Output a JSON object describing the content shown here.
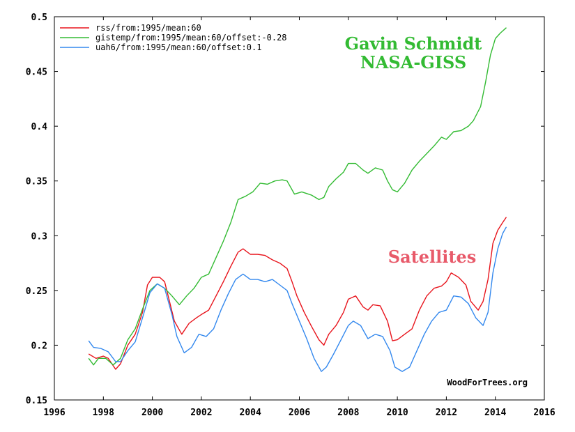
{
  "chart_data": {
    "type": "line",
    "title": "",
    "xlabel": "",
    "ylabel": "",
    "xlim": [
      1996,
      2016
    ],
    "ylim": [
      0.15,
      0.5
    ],
    "x_ticks": [
      1996,
      1998,
      2000,
      2002,
      2004,
      2006,
      2008,
      2010,
      2012,
      2014,
      2016
    ],
    "y_ticks": [
      0.15,
      0.2,
      0.25,
      0.3,
      0.35,
      0.4,
      0.45,
      0.5
    ],
    "x_tick_labels": [
      "1996",
      "1998",
      "2000",
      "2002",
      "2004",
      "2006",
      "2008",
      "2010",
      "2012",
      "2014",
      "2016"
    ],
    "y_tick_labels": [
      "0.15",
      "0.2",
      "0.25",
      "0.3",
      "0.35",
      "0.4",
      "0.45",
      "0.5"
    ],
    "grid": false,
    "legend_position": "top-left",
    "series": [
      {
        "name": "rss/from:1995/mean:60",
        "color": "#e8141c",
        "points": [
          [
            1997.4,
            0.192
          ],
          [
            1997.7,
            0.188
          ],
          [
            1998.0,
            0.19
          ],
          [
            1998.2,
            0.188
          ],
          [
            1998.5,
            0.178
          ],
          [
            1998.7,
            0.183
          ],
          [
            1999.0,
            0.2
          ],
          [
            1999.3,
            0.21
          ],
          [
            1999.6,
            0.23
          ],
          [
            1999.8,
            0.255
          ],
          [
            2000.0,
            0.262
          ],
          [
            2000.3,
            0.262
          ],
          [
            2000.5,
            0.258
          ],
          [
            2000.7,
            0.24
          ],
          [
            2000.9,
            0.222
          ],
          [
            2001.2,
            0.21
          ],
          [
            2001.5,
            0.22
          ],
          [
            2001.8,
            0.225
          ],
          [
            2002.0,
            0.228
          ],
          [
            2002.3,
            0.232
          ],
          [
            2002.6,
            0.245
          ],
          [
            2002.9,
            0.258
          ],
          [
            2003.2,
            0.272
          ],
          [
            2003.5,
            0.285
          ],
          [
            2003.7,
            0.288
          ],
          [
            2004.0,
            0.283
          ],
          [
            2004.3,
            0.283
          ],
          [
            2004.6,
            0.282
          ],
          [
            2004.9,
            0.278
          ],
          [
            2005.2,
            0.275
          ],
          [
            2005.5,
            0.27
          ],
          [
            2005.7,
            0.258
          ],
          [
            2005.9,
            0.245
          ],
          [
            2006.2,
            0.23
          ],
          [
            2006.5,
            0.217
          ],
          [
            2006.8,
            0.205
          ],
          [
            2007.0,
            0.2
          ],
          [
            2007.2,
            0.21
          ],
          [
            2007.5,
            0.218
          ],
          [
            2007.8,
            0.23
          ],
          [
            2008.0,
            0.242
          ],
          [
            2008.3,
            0.245
          ],
          [
            2008.6,
            0.235
          ],
          [
            2008.8,
            0.232
          ],
          [
            2009.0,
            0.237
          ],
          [
            2009.3,
            0.236
          ],
          [
            2009.6,
            0.222
          ],
          [
            2009.8,
            0.204
          ],
          [
            2010.0,
            0.205
          ],
          [
            2010.3,
            0.21
          ],
          [
            2010.6,
            0.215
          ],
          [
            2010.9,
            0.232
          ],
          [
            2011.2,
            0.245
          ],
          [
            2011.5,
            0.252
          ],
          [
            2011.8,
            0.254
          ],
          [
            2012.0,
            0.258
          ],
          [
            2012.2,
            0.266
          ],
          [
            2012.5,
            0.262
          ],
          [
            2012.8,
            0.255
          ],
          [
            2013.0,
            0.24
          ],
          [
            2013.3,
            0.232
          ],
          [
            2013.5,
            0.24
          ],
          [
            2013.7,
            0.26
          ],
          [
            2013.9,
            0.293
          ],
          [
            2014.1,
            0.305
          ],
          [
            2014.3,
            0.312
          ],
          [
            2014.45,
            0.317
          ]
        ]
      },
      {
        "name": "gistemp/from:1995/mean:60/offset:-0.28",
        "color": "#33bb33",
        "points": [
          [
            1997.4,
            0.188
          ],
          [
            1997.6,
            0.182
          ],
          [
            1997.8,
            0.188
          ],
          [
            1998.1,
            0.188
          ],
          [
            1998.4,
            0.182
          ],
          [
            1998.7,
            0.188
          ],
          [
            1999.0,
            0.205
          ],
          [
            1999.3,
            0.215
          ],
          [
            1999.6,
            0.233
          ],
          [
            1999.9,
            0.25
          ],
          [
            2000.2,
            0.256
          ],
          [
            2000.5,
            0.252
          ],
          [
            2000.8,
            0.245
          ],
          [
            2001.1,
            0.237
          ],
          [
            2001.4,
            0.245
          ],
          [
            2001.7,
            0.252
          ],
          [
            2002.0,
            0.262
          ],
          [
            2002.3,
            0.265
          ],
          [
            2002.6,
            0.28
          ],
          [
            2002.9,
            0.295
          ],
          [
            2003.2,
            0.312
          ],
          [
            2003.5,
            0.333
          ],
          [
            2003.8,
            0.336
          ],
          [
            2004.1,
            0.34
          ],
          [
            2004.4,
            0.348
          ],
          [
            2004.7,
            0.347
          ],
          [
            2005.0,
            0.35
          ],
          [
            2005.3,
            0.351
          ],
          [
            2005.5,
            0.35
          ],
          [
            2005.8,
            0.338
          ],
          [
            2006.1,
            0.34
          ],
          [
            2006.5,
            0.337
          ],
          [
            2006.8,
            0.333
          ],
          [
            2007.0,
            0.335
          ],
          [
            2007.2,
            0.345
          ],
          [
            2007.5,
            0.352
          ],
          [
            2007.8,
            0.358
          ],
          [
            2008.0,
            0.366
          ],
          [
            2008.3,
            0.366
          ],
          [
            2008.6,
            0.36
          ],
          [
            2008.8,
            0.357
          ],
          [
            2009.1,
            0.362
          ],
          [
            2009.4,
            0.36
          ],
          [
            2009.6,
            0.35
          ],
          [
            2009.8,
            0.342
          ],
          [
            2010.0,
            0.34
          ],
          [
            2010.3,
            0.348
          ],
          [
            2010.6,
            0.36
          ],
          [
            2010.9,
            0.368
          ],
          [
            2011.2,
            0.375
          ],
          [
            2011.5,
            0.382
          ],
          [
            2011.8,
            0.39
          ],
          [
            2012.0,
            0.388
          ],
          [
            2012.3,
            0.395
          ],
          [
            2012.6,
            0.396
          ],
          [
            2012.9,
            0.4
          ],
          [
            2013.1,
            0.405
          ],
          [
            2013.4,
            0.418
          ],
          [
            2013.6,
            0.44
          ],
          [
            2013.8,
            0.465
          ],
          [
            2014.0,
            0.48
          ],
          [
            2014.2,
            0.485
          ],
          [
            2014.45,
            0.49
          ]
        ]
      },
      {
        "name": "uah6/from:1995/mean:60/offset:0.1",
        "color": "#3388ee",
        "points": [
          [
            1997.4,
            0.204
          ],
          [
            1997.6,
            0.198
          ],
          [
            1997.9,
            0.197
          ],
          [
            1998.2,
            0.194
          ],
          [
            1998.5,
            0.185
          ],
          [
            1998.7,
            0.185
          ],
          [
            1999.0,
            0.195
          ],
          [
            1999.3,
            0.203
          ],
          [
            1999.6,
            0.225
          ],
          [
            1999.9,
            0.248
          ],
          [
            2000.2,
            0.256
          ],
          [
            2000.5,
            0.252
          ],
          [
            2000.8,
            0.228
          ],
          [
            2001.0,
            0.208
          ],
          [
            2001.3,
            0.193
          ],
          [
            2001.6,
            0.198
          ],
          [
            2001.9,
            0.21
          ],
          [
            2002.2,
            0.208
          ],
          [
            2002.5,
            0.215
          ],
          [
            2002.8,
            0.232
          ],
          [
            2003.1,
            0.247
          ],
          [
            2003.4,
            0.26
          ],
          [
            2003.7,
            0.265
          ],
          [
            2004.0,
            0.26
          ],
          [
            2004.3,
            0.26
          ],
          [
            2004.6,
            0.258
          ],
          [
            2004.9,
            0.26
          ],
          [
            2005.2,
            0.255
          ],
          [
            2005.5,
            0.25
          ],
          [
            2005.7,
            0.238
          ],
          [
            2006.0,
            0.222
          ],
          [
            2006.3,
            0.206
          ],
          [
            2006.6,
            0.188
          ],
          [
            2006.9,
            0.176
          ],
          [
            2007.1,
            0.18
          ],
          [
            2007.4,
            0.192
          ],
          [
            2007.7,
            0.205
          ],
          [
            2008.0,
            0.218
          ],
          [
            2008.2,
            0.222
          ],
          [
            2008.5,
            0.218
          ],
          [
            2008.8,
            0.206
          ],
          [
            2009.1,
            0.21
          ],
          [
            2009.4,
            0.208
          ],
          [
            2009.7,
            0.195
          ],
          [
            2009.9,
            0.18
          ],
          [
            2010.2,
            0.176
          ],
          [
            2010.5,
            0.18
          ],
          [
            2010.8,
            0.195
          ],
          [
            2011.1,
            0.21
          ],
          [
            2011.4,
            0.222
          ],
          [
            2011.7,
            0.23
          ],
          [
            2012.0,
            0.232
          ],
          [
            2012.3,
            0.245
          ],
          [
            2012.6,
            0.244
          ],
          [
            2012.9,
            0.238
          ],
          [
            2013.2,
            0.225
          ],
          [
            2013.5,
            0.218
          ],
          [
            2013.7,
            0.23
          ],
          [
            2013.9,
            0.266
          ],
          [
            2014.1,
            0.288
          ],
          [
            2014.3,
            0.302
          ],
          [
            2014.45,
            0.308
          ]
        ]
      }
    ],
    "annotations": [
      {
        "text": "Gavin Schmidt",
        "color": "#33bb33"
      },
      {
        "text": "NASA-GISS",
        "color": "#33bb33"
      },
      {
        "text": "Satellites",
        "color": "#e85a6a"
      }
    ],
    "watermark": "WoodForTrees.org"
  }
}
